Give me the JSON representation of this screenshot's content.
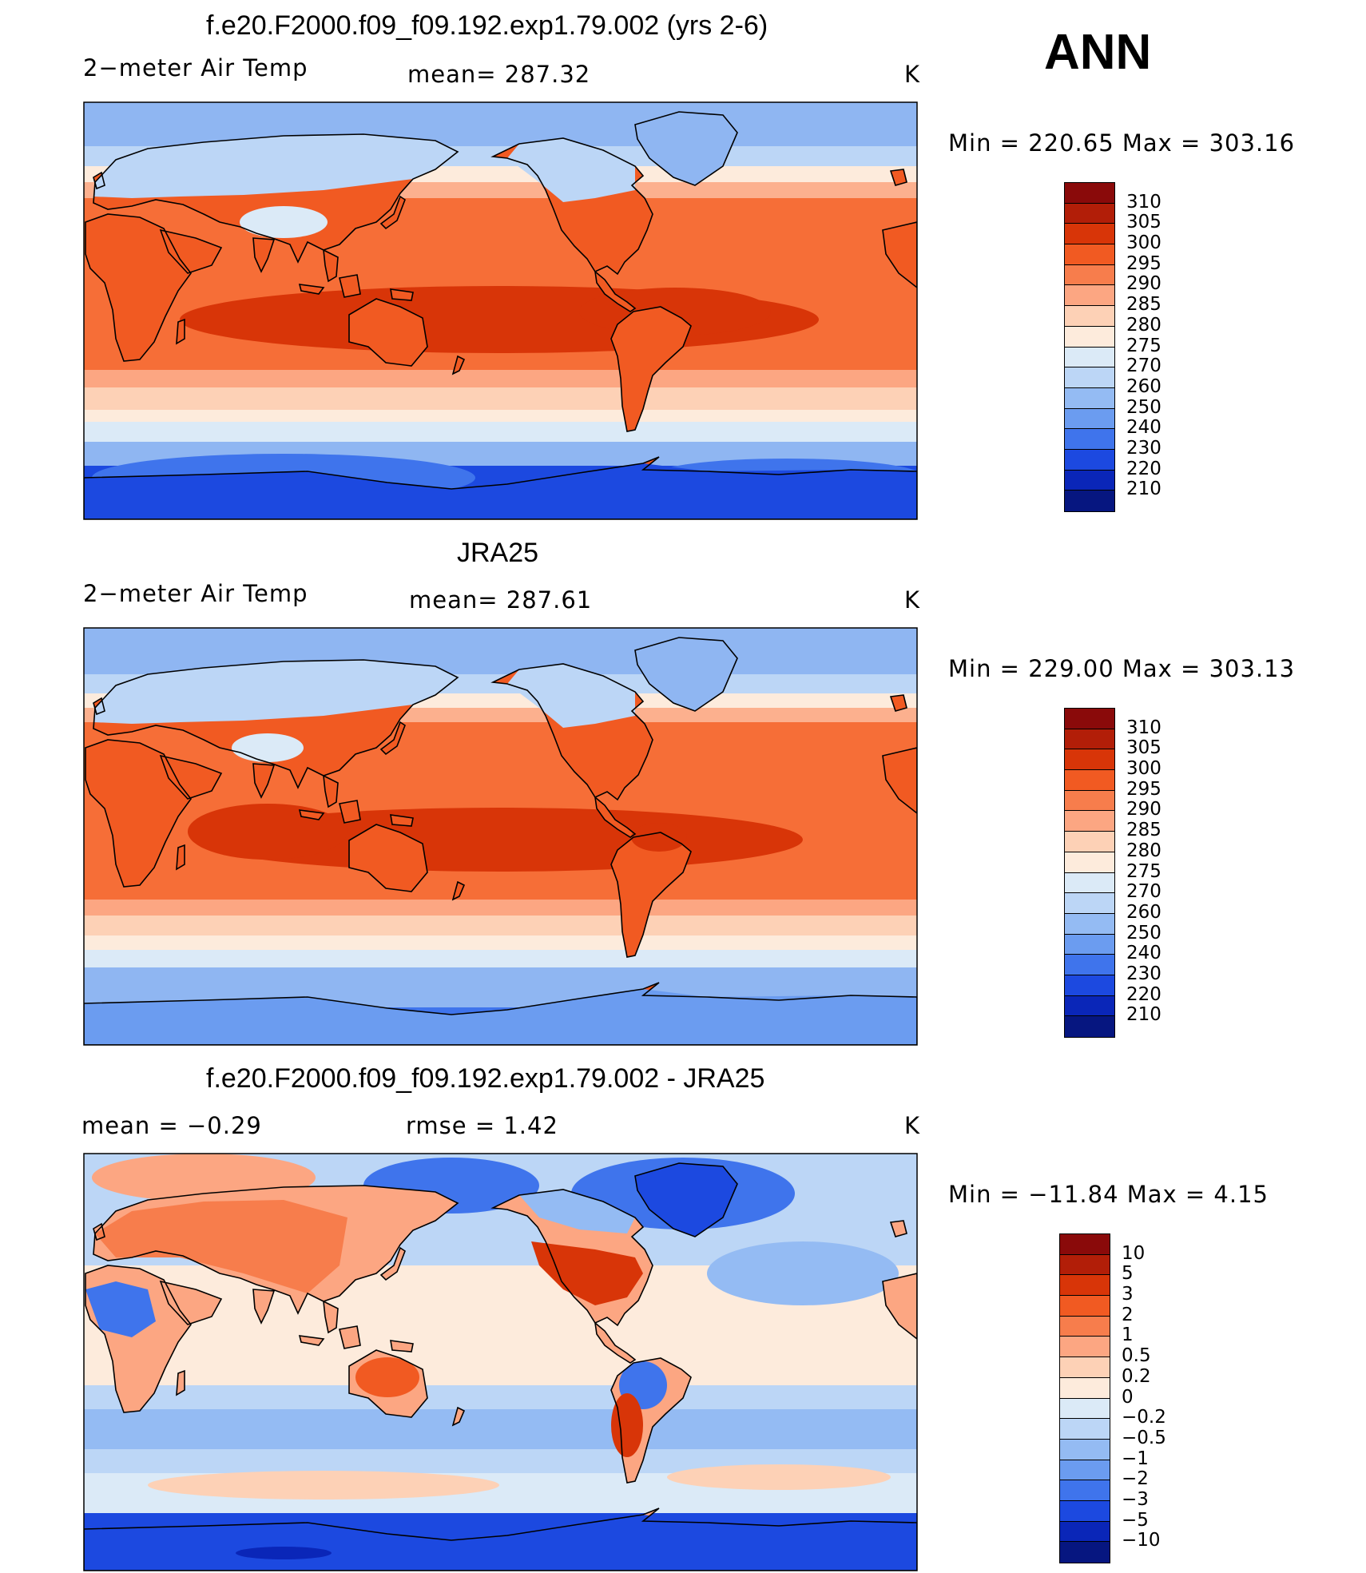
{
  "season": "ANN",
  "units": "K",
  "panels": [
    {
      "title": "f.e20.F2000.f09_f09.192.exp1.79.002 (yrs 2-6)",
      "left_label": "2−meter Air Temp",
      "mid_label": "mean=  287.32",
      "right_label": "K",
      "minmax": "Min  =  220.65  Max  =  303.16",
      "colorbar": {
        "labels": [
          "310",
          "305",
          "300",
          "295",
          "290",
          "285",
          "280",
          "275",
          "270",
          "260",
          "250",
          "240",
          "230",
          "220",
          "210"
        ],
        "colors": [
          "#8a0a0a",
          "#b21e08",
          "#d83508",
          "#f15a22",
          "#f77d4c",
          "#fca682",
          "#fdd1b6",
          "#fdebdc",
          "#dbeaf7",
          "#bcd6f6",
          "#94bbf3",
          "#6b9cf0",
          "#3f74ec",
          "#1c49e0",
          "#0a26b8",
          "#061680"
        ]
      }
    },
    {
      "title": "JRA25",
      "left_label": "2−meter Air Temp",
      "mid_label": "mean=  287.61",
      "right_label": "K",
      "minmax": "Min  =  229.00  Max  =  303.13",
      "colorbar": {
        "labels": [
          "310",
          "305",
          "300",
          "295",
          "290",
          "285",
          "280",
          "275",
          "270",
          "260",
          "250",
          "240",
          "230",
          "220",
          "210"
        ],
        "colors": [
          "#8a0a0a",
          "#b21e08",
          "#d83508",
          "#f15a22",
          "#f77d4c",
          "#fca682",
          "#fdd1b6",
          "#fdebdc",
          "#dbeaf7",
          "#bcd6f6",
          "#94bbf3",
          "#6b9cf0",
          "#3f74ec",
          "#1c49e0",
          "#0a26b8",
          "#061680"
        ]
      }
    },
    {
      "title": "f.e20.F2000.f09_f09.192.exp1.79.002 - JRA25",
      "left_label": "mean  =     −0.29",
      "mid_label": "rmse  =     1.42",
      "right_label": "K",
      "minmax": "Min  =  −11.84  Max  =      4.15",
      "colorbar": {
        "labels": [
          "10",
          "5",
          "3",
          "2",
          "1",
          "0.5",
          "0.2",
          "0",
          "−0.2",
          "−0.5",
          "−1",
          "−2",
          "−3",
          "−5",
          "−10"
        ],
        "colors": [
          "#8a0a0a",
          "#b21e08",
          "#d83508",
          "#f15a22",
          "#f77d4c",
          "#fca682",
          "#fdd1b6",
          "#fdebdc",
          "#dbeaf7",
          "#bcd6f6",
          "#94bbf3",
          "#6b9cf0",
          "#3f74ec",
          "#1c49e0",
          "#0a26b8",
          "#061680"
        ]
      }
    }
  ]
}
